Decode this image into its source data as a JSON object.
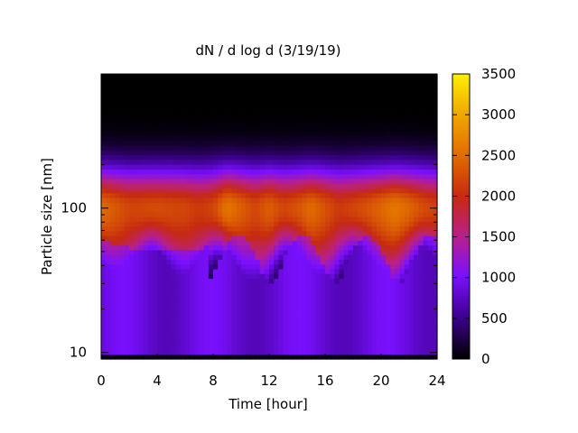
{
  "chart_data": {
    "type": "heatmap",
    "title": "dN / d log d (3/19/19)",
    "xlabel": "Time [hour]",
    "ylabel": "Particle size [nm]",
    "xlim": [
      0,
      24
    ],
    "ylim": [
      9,
      850
    ],
    "y_scale": "log",
    "x_ticks": [
      0,
      4,
      8,
      12,
      16,
      20,
      24
    ],
    "x_tick_labels": [
      "0",
      "4",
      "8",
      "12",
      "16",
      "20",
      "24"
    ],
    "y_ticks": [
      10,
      100
    ],
    "y_tick_labels": [
      "10",
      "100"
    ],
    "colorbar": {
      "range": [
        0,
        3500
      ],
      "ticks": [
        0,
        500,
        1000,
        1500,
        2000,
        2500,
        3000,
        3500
      ],
      "tick_labels": [
        "0",
        "500",
        "1000",
        "1500",
        "2000",
        "2500",
        "3000",
        "3500"
      ],
      "palette": "black-purple-red-orange-yellow"
    },
    "peak_size_nm": 100,
    "time_profile": {
      "hours": [
        0,
        2,
        4,
        6,
        7,
        8,
        9,
        10,
        11,
        12,
        13,
        14,
        15,
        16,
        17,
        18,
        19,
        20,
        21,
        22,
        23,
        24
      ],
      "peak_concentration": [
        2500,
        2200,
        2250,
        2200,
        2100,
        2200,
        2600,
        2400,
        2200,
        2400,
        2200,
        2300,
        2500,
        2300,
        2100,
        2200,
        2300,
        2450,
        2600,
        2450,
        2250,
        2150
      ]
    },
    "grid": false
  }
}
